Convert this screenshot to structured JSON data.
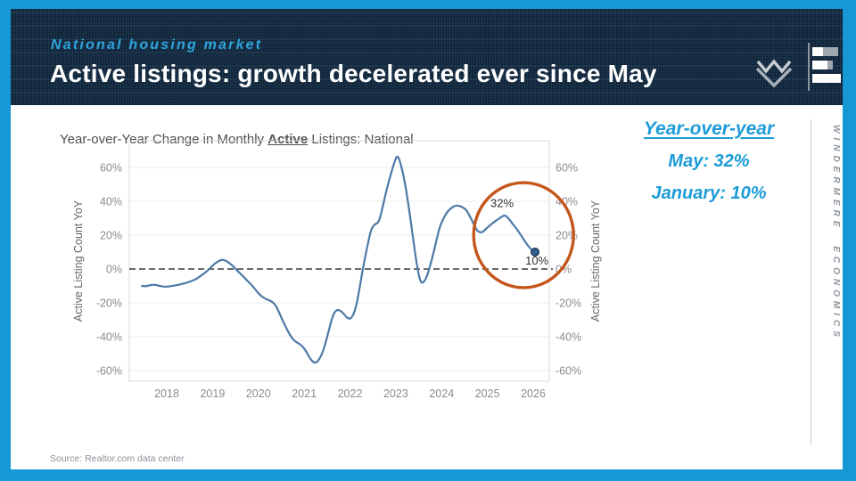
{
  "colors": {
    "accent_cyan": "#1598D4",
    "header_navy": "#132B42",
    "callout_cyan": "#1D9CD8",
    "line_blue": "#4E79A7",
    "ellipse_orange": "#C4561B"
  },
  "header": {
    "eyebrow": "National housing market",
    "title": "Active listings: growth decelerated ever since May"
  },
  "logo": {
    "diamond_name": "windermere-diamond-logo",
    "bars_name": "economics-e-bars-logo"
  },
  "chart_data": {
    "type": "line",
    "title": "Year-over-Year Change in Monthly Active Listings: National",
    "title_parts": {
      "pre": "Year-over-Year Change in Monthly ",
      "emph": "Active",
      "post": " Listings: National"
    },
    "xlabel": "",
    "ylabel": "Active Listing Count YoY",
    "ylim": [
      -66,
      76
    ],
    "grid": true,
    "zero_line_dashed": true,
    "x_ticks": [
      2018,
      2019,
      2020,
      2021,
      2022,
      2023,
      2024,
      2025,
      2026
    ],
    "y_ticks": [
      {
        "label": "60%",
        "value": 60
      },
      {
        "label": "40%",
        "value": 40
      },
      {
        "label": "20%",
        "value": 20
      },
      {
        "label": "0%",
        "value": 0
      },
      {
        "label": "-20%",
        "value": -20
      },
      {
        "label": "-40%",
        "value": -40
      },
      {
        "label": "-60%",
        "value": -60
      }
    ],
    "series": [
      {
        "name": "Active listing count YoY %",
        "color": "#4E79A7",
        "x": [
          2017.46,
          2017.54,
          2017.63,
          2017.71,
          2017.79,
          2017.88,
          2017.96,
          2018.04,
          2018.13,
          2018.21,
          2018.29,
          2018.38,
          2018.46,
          2018.54,
          2018.63,
          2018.71,
          2018.79,
          2018.88,
          2018.96,
          2019.04,
          2019.13,
          2019.21,
          2019.29,
          2019.38,
          2019.46,
          2019.54,
          2019.63,
          2019.71,
          2019.79,
          2019.88,
          2019.96,
          2020.04,
          2020.13,
          2020.21,
          2020.29,
          2020.38,
          2020.46,
          2020.54,
          2020.63,
          2020.71,
          2020.79,
          2020.88,
          2020.96,
          2021.04,
          2021.13,
          2021.21,
          2021.29,
          2021.38,
          2021.46,
          2021.54,
          2021.63,
          2021.71,
          2021.79,
          2021.88,
          2021.96,
          2022.04,
          2022.13,
          2022.21,
          2022.29,
          2022.38,
          2022.46,
          2022.54,
          2022.63,
          2022.71,
          2022.79,
          2022.88,
          2022.96,
          2023.04,
          2023.13,
          2023.21,
          2023.29,
          2023.38,
          2023.46,
          2023.54,
          2023.63,
          2023.71,
          2023.79,
          2023.88,
          2023.96,
          2024.04,
          2024.13,
          2024.21,
          2024.29,
          2024.38,
          2024.46,
          2024.54,
          2024.63,
          2024.71,
          2024.79,
          2024.88,
          2024.96,
          2025.04,
          2025.13,
          2025.21,
          2025.29,
          2025.38,
          2025.46,
          2025.54,
          2025.63,
          2025.71,
          2025.79,
          2025.88,
          2025.96,
          2026.04
        ],
        "y": [
          -10.0,
          -10.3,
          -9.6,
          -9.2,
          -9.6,
          -10.2,
          -10.5,
          -10.3,
          -10.0,
          -9.6,
          -9.1,
          -8.5,
          -7.9,
          -7.1,
          -6.1,
          -4.7,
          -3.1,
          -1.3,
          0.9,
          3.0,
          4.7,
          5.6,
          4.9,
          3.3,
          1.3,
          -1.0,
          -3.3,
          -5.5,
          -7.8,
          -10.2,
          -13.0,
          -15.5,
          -17.2,
          -18.3,
          -19.0,
          -21.5,
          -26.0,
          -31.0,
          -36.0,
          -40.0,
          -42.5,
          -44.0,
          -45.5,
          -48.5,
          -53.0,
          -55.5,
          -55.0,
          -51.0,
          -44.5,
          -36.0,
          -27.0,
          -24.0,
          -24.5,
          -27.0,
          -29.5,
          -29.0,
          -23.0,
          -11.5,
          1.5,
          13.5,
          23.5,
          26.5,
          27.5,
          36.0,
          46.0,
          55.0,
          62.5,
          68.0,
          60.0,
          49.5,
          35.5,
          17.5,
          2.0,
          -8.5,
          -7.5,
          -2.0,
          6.0,
          16.0,
          25.0,
          30.0,
          34.0,
          36.0,
          37.5,
          37.5,
          36.5,
          35.0,
          30.5,
          26.0,
          22.0,
          21.5,
          23.5,
          25.5,
          27.5,
          29.0,
          30.5,
          32.0,
          30.0,
          27.0,
          24.0,
          21.0,
          17.5,
          14.0,
          11.5,
          10.0
        ]
      }
    ],
    "end_marker": {
      "x": 2026.04,
      "y": 10.0
    },
    "annotations": [
      {
        "text": "32%",
        "x": 2025.32,
        "y": 36.5
      },
      {
        "text": "10%",
        "x": 2026.08,
        "y": 2.6
      }
    ],
    "highlight_ellipse": {
      "cx_year": 2025.79,
      "cy_value": 20,
      "rx_years": 1.09,
      "ry_pct": 31,
      "color": "#C4561B"
    },
    "legend": "none"
  },
  "callout": {
    "heading": "Year-over-year",
    "lines": [
      "May: 32%",
      "January: 10%"
    ]
  },
  "brand": {
    "vertical_text": "WINDERMERE ECONOMICS"
  },
  "footer": {
    "source": "Source: Realtor.com data center"
  }
}
